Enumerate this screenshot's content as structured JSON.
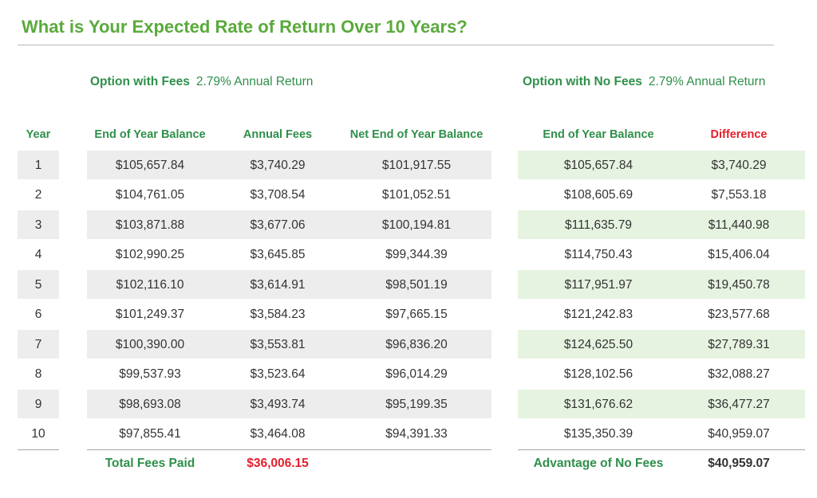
{
  "title": "What is Your Expected Rate of Return Over 10 Years?",
  "option_fees": {
    "label": "Option with Fees",
    "rate": "2.79% Annual Return"
  },
  "option_no_fees": {
    "label": "Option with No Fees",
    "rate": "2.79% Annual Return"
  },
  "headers": {
    "year": "Year",
    "end_balance": "End of Year Balance",
    "annual_fees": "Annual Fees",
    "net_balance": "Net End of Year Balance",
    "end_balance_no_fees": "End of Year Balance",
    "difference": "Difference"
  },
  "rows": [
    {
      "year": "1",
      "end_balance": "$105,657.84",
      "annual_fees": "$3,740.29",
      "net_balance": "$101,917.55",
      "end_balance_no_fees": "$105,657.84",
      "difference": "$3,740.29"
    },
    {
      "year": "2",
      "end_balance": "$104,761.05",
      "annual_fees": "$3,708.54",
      "net_balance": "$101,052.51",
      "end_balance_no_fees": "$108,605.69",
      "difference": "$7,553.18"
    },
    {
      "year": "3",
      "end_balance": "$103,871.88",
      "annual_fees": "$3,677.06",
      "net_balance": "$100,194.81",
      "end_balance_no_fees": "$111,635.79",
      "difference": "$11,440.98"
    },
    {
      "year": "4",
      "end_balance": "$102,990.25",
      "annual_fees": "$3,645.85",
      "net_balance": "$99,344.39",
      "end_balance_no_fees": "$114,750.43",
      "difference": "$15,406.04"
    },
    {
      "year": "5",
      "end_balance": "$102,116.10",
      "annual_fees": "$3,614.91",
      "net_balance": "$98,501.19",
      "end_balance_no_fees": "$117,951.97",
      "difference": "$19,450.78"
    },
    {
      "year": "6",
      "end_balance": "$101,249.37",
      "annual_fees": "$3,584.23",
      "net_balance": "$97,665.15",
      "end_balance_no_fees": "$121,242.83",
      "difference": "$23,577.68"
    },
    {
      "year": "7",
      "end_balance": "$100,390.00",
      "annual_fees": "$3,553.81",
      "net_balance": "$96,836.20",
      "end_balance_no_fees": "$124,625.50",
      "difference": "$27,789.31"
    },
    {
      "year": "8",
      "end_balance": "$99,537.93",
      "annual_fees": "$3,523.64",
      "net_balance": "$96,014.29",
      "end_balance_no_fees": "$128,102.56",
      "difference": "$32,088.27"
    },
    {
      "year": "9",
      "end_balance": "$98,693.08",
      "annual_fees": "$3,493.74",
      "net_balance": "$95,199.35",
      "end_balance_no_fees": "$131,676.62",
      "difference": "$36,477.27"
    },
    {
      "year": "10",
      "end_balance": "$97,855.41",
      "annual_fees": "$3,464.08",
      "net_balance": "$94,391.33",
      "end_balance_no_fees": "$135,350.39",
      "difference": "$40,959.07"
    }
  ],
  "footer": {
    "total_fees_label": "Total Fees Paid",
    "total_fees_value": "$36,006.15",
    "advantage_label": "Advantage of No Fees",
    "advantage_value": "$40,959.07"
  },
  "colors": {
    "title_green": "#5aaa3c",
    "header_green": "#2f8f4a",
    "accent_red": "#e41e2b",
    "band_gray": "#ededed",
    "band_green": "#e6f3e1"
  }
}
